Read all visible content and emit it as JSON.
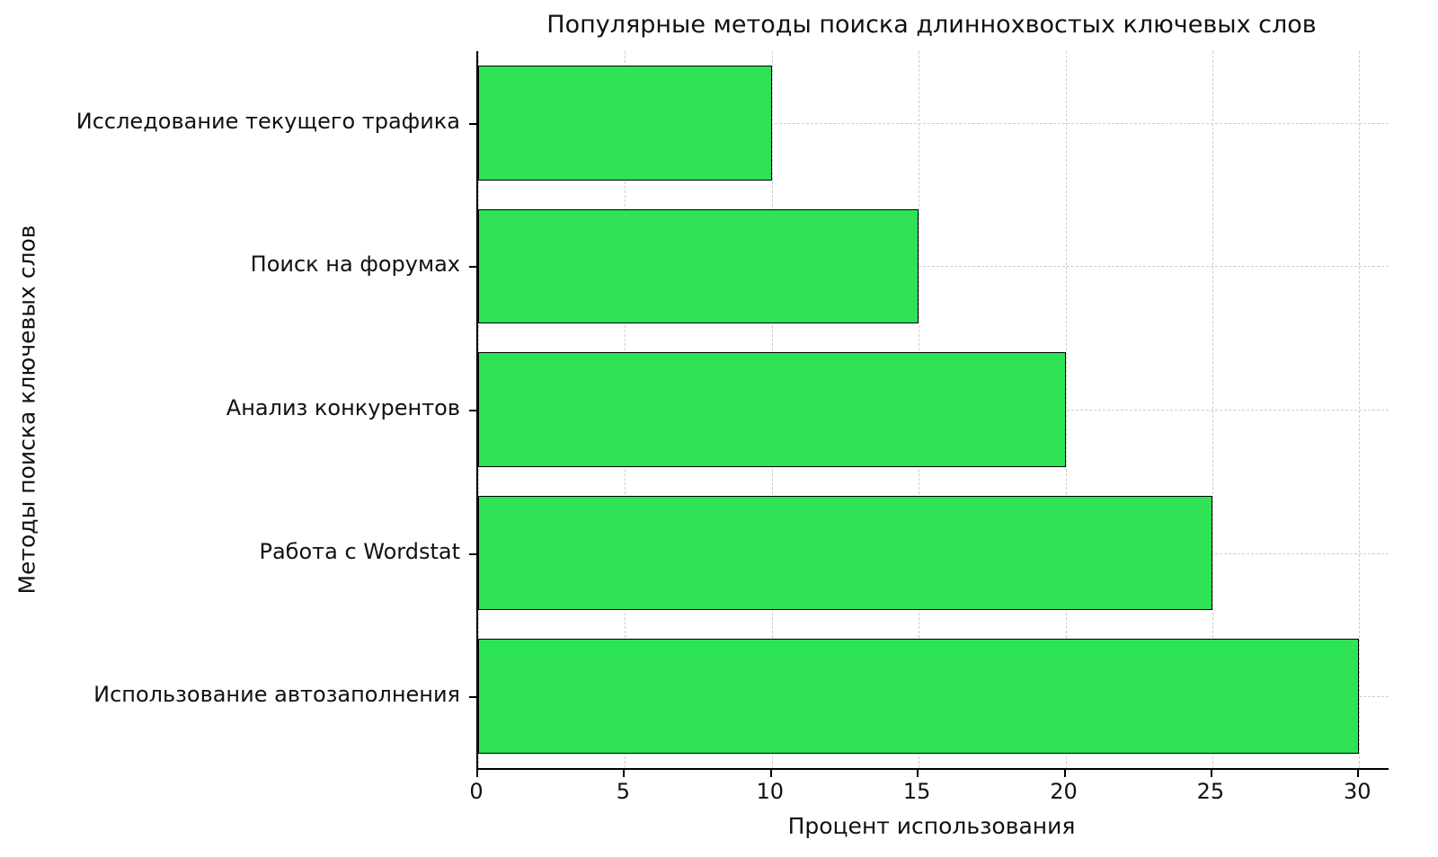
{
  "chart_data": {
    "type": "bar",
    "orientation": "horizontal",
    "title": "Популярные методы поиска длиннохвостых ключевых слов",
    "xlabel": "Процент использования",
    "ylabel": "Методы поиска ключевых слов",
    "categories": [
      "Исследование текущего трафика",
      "Поиск на форумах",
      "Анализ конкурентов",
      "Работа с Wordstat",
      "Использование автозаполнения"
    ],
    "values": [
      10,
      15,
      20,
      25,
      30
    ],
    "xticks": [
      "0",
      "5",
      "10",
      "15",
      "20",
      "25",
      "30"
    ],
    "xtick_values": [
      0,
      5,
      10,
      15,
      20,
      25,
      30
    ],
    "xlim": [
      0,
      31
    ],
    "grid": "dashed, both axes",
    "legend": "none",
    "bar_color": "#2ee355",
    "bar_edge_color": "#000000",
    "grid_color": "#cccccc",
    "background_color": "#ffffff"
  }
}
